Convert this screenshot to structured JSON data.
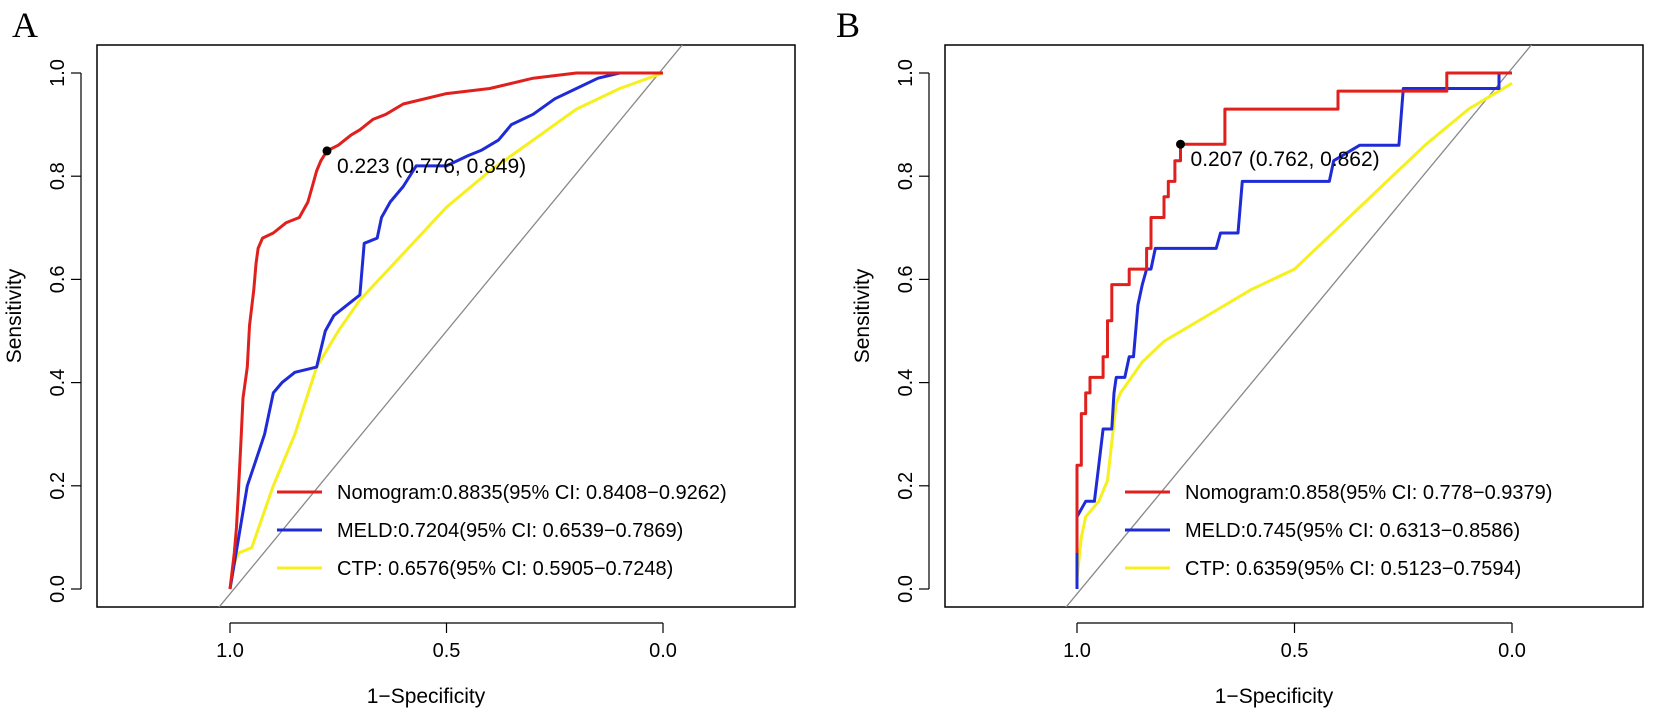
{
  "chart_data": [
    {
      "panel": "A",
      "type": "line",
      "xlabel": "1−Specificity",
      "ylabel": "Sensitivity",
      "xlim": [
        1.0,
        0.0
      ],
      "ylim": [
        0.0,
        1.0
      ],
      "x_ticks": [
        "1.0",
        "0.5",
        "0.0"
      ],
      "y_ticks": [
        "0.0",
        "0.2",
        "0.4",
        "0.6",
        "0.8",
        "1.0"
      ],
      "grid": false,
      "legend_position": "bottom-right",
      "diagonal_reference": true,
      "series": [
        {
          "name": "Nomogram:0.8835(95% CI: 0.8408−0.9262)",
          "color": "#e0201c",
          "points": [
            [
              1.0,
              0.0
            ],
            [
              0.99,
              0.07
            ],
            [
              0.985,
              0.12
            ],
            [
              0.98,
              0.2
            ],
            [
              0.975,
              0.28
            ],
            [
              0.97,
              0.37
            ],
            [
              0.96,
              0.43
            ],
            [
              0.955,
              0.51
            ],
            [
              0.945,
              0.58
            ],
            [
              0.94,
              0.63
            ],
            [
              0.935,
              0.66
            ],
            [
              0.925,
              0.68
            ],
            [
              0.9,
              0.69
            ],
            [
              0.87,
              0.71
            ],
            [
              0.84,
              0.72
            ],
            [
              0.82,
              0.75
            ],
            [
              0.81,
              0.78
            ],
            [
              0.8,
              0.81
            ],
            [
              0.79,
              0.83
            ],
            [
              0.776,
              0.849
            ],
            [
              0.75,
              0.86
            ],
            [
              0.72,
              0.88
            ],
            [
              0.7,
              0.89
            ],
            [
              0.67,
              0.91
            ],
            [
              0.64,
              0.92
            ],
            [
              0.6,
              0.94
            ],
            [
              0.5,
              0.96
            ],
            [
              0.4,
              0.97
            ],
            [
              0.3,
              0.99
            ],
            [
              0.2,
              1.0
            ],
            [
              0.0,
              1.0
            ]
          ]
        },
        {
          "name": "MELD:0.7204(95% CI: 0.6539−0.7869)",
          "color": "#1f2bd6",
          "points": [
            [
              1.0,
              0.0
            ],
            [
              0.98,
              0.1
            ],
            [
              0.96,
              0.2
            ],
            [
              0.94,
              0.25
            ],
            [
              0.92,
              0.3
            ],
            [
              0.9,
              0.38
            ],
            [
              0.88,
              0.4
            ],
            [
              0.85,
              0.42
            ],
            [
              0.8,
              0.43
            ],
            [
              0.78,
              0.5
            ],
            [
              0.76,
              0.53
            ],
            [
              0.73,
              0.55
            ],
            [
              0.7,
              0.57
            ],
            [
              0.69,
              0.67
            ],
            [
              0.66,
              0.68
            ],
            [
              0.65,
              0.72
            ],
            [
              0.63,
              0.75
            ],
            [
              0.6,
              0.78
            ],
            [
              0.57,
              0.82
            ],
            [
              0.5,
              0.82
            ],
            [
              0.45,
              0.84
            ],
            [
              0.42,
              0.85
            ],
            [
              0.38,
              0.87
            ],
            [
              0.35,
              0.9
            ],
            [
              0.3,
              0.92
            ],
            [
              0.25,
              0.95
            ],
            [
              0.2,
              0.97
            ],
            [
              0.15,
              0.99
            ],
            [
              0.1,
              1.0
            ],
            [
              0.0,
              1.0
            ]
          ]
        },
        {
          "name": "CTP: 0.6576(95% CI: 0.5905−0.7248)",
          "color": "#f5f01e",
          "points": [
            [
              1.0,
              0.0
            ],
            [
              0.99,
              0.05
            ],
            [
              0.98,
              0.07
            ],
            [
              0.95,
              0.08
            ],
            [
              0.9,
              0.2
            ],
            [
              0.85,
              0.3
            ],
            [
              0.8,
              0.43
            ],
            [
              0.75,
              0.5
            ],
            [
              0.7,
              0.56
            ],
            [
              0.6,
              0.65
            ],
            [
              0.5,
              0.74
            ],
            [
              0.4,
              0.81
            ],
            [
              0.3,
              0.87
            ],
            [
              0.2,
              0.93
            ],
            [
              0.1,
              0.97
            ],
            [
              0.0,
              1.0
            ]
          ]
        }
      ],
      "cutoff": {
        "x": 0.776,
        "y": 0.849,
        "label": "0.223 (0.776, 0.849)"
      }
    },
    {
      "panel": "B",
      "type": "line",
      "xlabel": "1−Specificity",
      "ylabel": "Sensitivity",
      "xlim": [
        1.0,
        0.0
      ],
      "ylim": [
        0.0,
        1.0
      ],
      "x_ticks": [
        "1.0",
        "0.5",
        "0.0"
      ],
      "y_ticks": [
        "0.0",
        "0.2",
        "0.4",
        "0.6",
        "0.8",
        "1.0"
      ],
      "grid": false,
      "legend_position": "bottom-right",
      "diagonal_reference": true,
      "series": [
        {
          "name": "Nomogram:0.858(95% CI: 0.778−0.9379)",
          "color": "#e0201c",
          "points": [
            [
              1.0,
              0.07
            ],
            [
              1.0,
              0.24
            ],
            [
              0.99,
              0.24
            ],
            [
              0.99,
              0.34
            ],
            [
              0.98,
              0.34
            ],
            [
              0.98,
              0.38
            ],
            [
              0.97,
              0.38
            ],
            [
              0.97,
              0.41
            ],
            [
              0.94,
              0.41
            ],
            [
              0.94,
              0.45
            ],
            [
              0.93,
              0.45
            ],
            [
              0.93,
              0.52
            ],
            [
              0.92,
              0.52
            ],
            [
              0.92,
              0.59
            ],
            [
              0.88,
              0.59
            ],
            [
              0.88,
              0.62
            ],
            [
              0.84,
              0.62
            ],
            [
              0.84,
              0.66
            ],
            [
              0.83,
              0.66
            ],
            [
              0.83,
              0.72
            ],
            [
              0.8,
              0.72
            ],
            [
              0.8,
              0.76
            ],
            [
              0.79,
              0.76
            ],
            [
              0.79,
              0.79
            ],
            [
              0.775,
              0.79
            ],
            [
              0.775,
              0.83
            ],
            [
              0.762,
              0.83
            ],
            [
              0.762,
              0.862
            ],
            [
              0.66,
              0.862
            ],
            [
              0.66,
              0.93
            ],
            [
              0.4,
              0.93
            ],
            [
              0.4,
              0.965
            ],
            [
              0.15,
              0.965
            ],
            [
              0.15,
              1.0
            ],
            [
              0.0,
              1.0
            ]
          ]
        },
        {
          "name": "MELD:0.745(95% CI: 0.6313−0.8586)",
          "color": "#1f2bd6",
          "points": [
            [
              1.0,
              0.0
            ],
            [
              1.0,
              0.14
            ],
            [
              0.98,
              0.17
            ],
            [
              0.96,
              0.17
            ],
            [
              0.95,
              0.24
            ],
            [
              0.94,
              0.31
            ],
            [
              0.92,
              0.31
            ],
            [
              0.915,
              0.38
            ],
            [
              0.91,
              0.41
            ],
            [
              0.89,
              0.41
            ],
            [
              0.88,
              0.45
            ],
            [
              0.87,
              0.45
            ],
            [
              0.86,
              0.55
            ],
            [
              0.85,
              0.59
            ],
            [
              0.84,
              0.62
            ],
            [
              0.83,
              0.62
            ],
            [
              0.82,
              0.66
            ],
            [
              0.68,
              0.66
            ],
            [
              0.67,
              0.69
            ],
            [
              0.63,
              0.69
            ],
            [
              0.62,
              0.79
            ],
            [
              0.42,
              0.79
            ],
            [
              0.41,
              0.83
            ],
            [
              0.35,
              0.86
            ],
            [
              0.26,
              0.86
            ],
            [
              0.25,
              0.97
            ],
            [
              0.03,
              0.97
            ],
            [
              0.03,
              1.0
            ],
            [
              0.0,
              1.0
            ]
          ]
        },
        {
          "name": "CTP: 0.6359(95% CI: 0.5123−0.7594)",
          "color": "#f5f01e",
          "points": [
            [
              1.0,
              0.02
            ],
            [
              0.99,
              0.1
            ],
            [
              0.98,
              0.14
            ],
            [
              0.95,
              0.17
            ],
            [
              0.93,
              0.21
            ],
            [
              0.91,
              0.36
            ],
            [
              0.9,
              0.38
            ],
            [
              0.85,
              0.44
            ],
            [
              0.8,
              0.48
            ],
            [
              0.7,
              0.53
            ],
            [
              0.6,
              0.58
            ],
            [
              0.5,
              0.62
            ],
            [
              0.4,
              0.7
            ],
            [
              0.3,
              0.78
            ],
            [
              0.2,
              0.86
            ],
            [
              0.1,
              0.93
            ],
            [
              0.0,
              0.98
            ]
          ]
        }
      ],
      "cutoff": {
        "x": 0.762,
        "y": 0.862,
        "label": "0.207 (0.762, 0.862)"
      }
    }
  ]
}
